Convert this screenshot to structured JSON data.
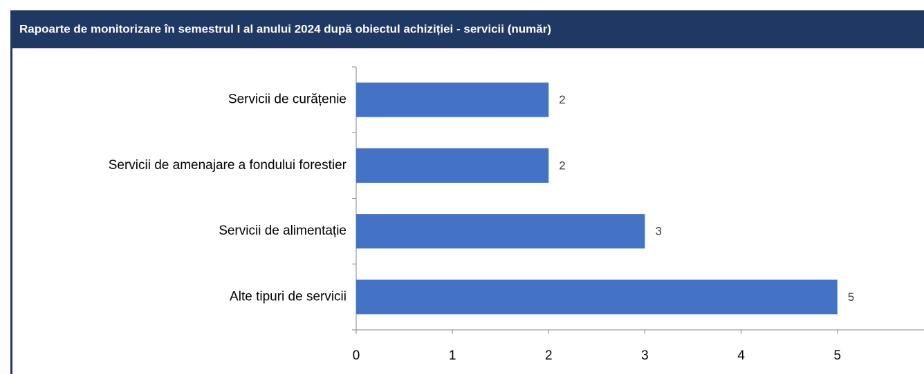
{
  "chart_data": {
    "type": "bar",
    "orientation": "horizontal",
    "title": "Rapoarte de monitorizare în semestrul I al anului 2024 după obiectul achiziției - servicii (număr)",
    "categories": [
      "Servicii de curățenie",
      "Servicii de amenajare a fondului forestier",
      "Servicii de alimentație",
      "Alte tipuri de servicii"
    ],
    "values": [
      2,
      2,
      3,
      5
    ],
    "color": "#4472c4",
    "xlim": [
      0,
      5.9
    ],
    "xticks": [
      0,
      1,
      2,
      3,
      4,
      5
    ],
    "grid": false
  }
}
